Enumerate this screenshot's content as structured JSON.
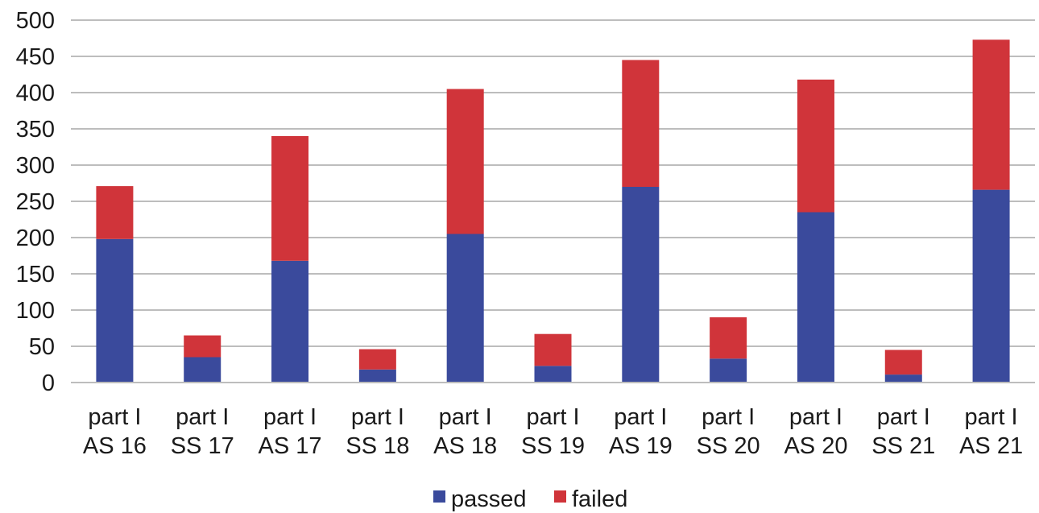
{
  "chart_data": {
    "type": "bar",
    "stacked": true,
    "title": "",
    "xlabel": "",
    "ylabel": "",
    "ylim": [
      0,
      500
    ],
    "yticks": [
      0,
      50,
      100,
      150,
      200,
      250,
      300,
      350,
      400,
      450,
      500
    ],
    "grid": true,
    "legend_position": "bottom",
    "categories": [
      [
        "part I",
        "AS 16"
      ],
      [
        "part I",
        "SS 17"
      ],
      [
        "part I",
        "AS 17"
      ],
      [
        "part I",
        "SS 18"
      ],
      [
        "part I",
        "AS 18"
      ],
      [
        "part I",
        "SS 19"
      ],
      [
        "part I",
        "AS 19"
      ],
      [
        "part I",
        "SS 20"
      ],
      [
        "part I",
        "AS 20"
      ],
      [
        "part I",
        "SS 21"
      ],
      [
        "part I",
        "AS 21"
      ]
    ],
    "series": [
      {
        "name": "passed",
        "color": "#3a4a9c",
        "values": [
          198,
          35,
          168,
          18,
          205,
          23,
          270,
          33,
          235,
          11,
          266
        ]
      },
      {
        "name": "failed",
        "color": "#d0343a",
        "values": [
          73,
          30,
          172,
          28,
          200,
          44,
          175,
          57,
          183,
          34,
          207
        ]
      }
    ]
  }
}
